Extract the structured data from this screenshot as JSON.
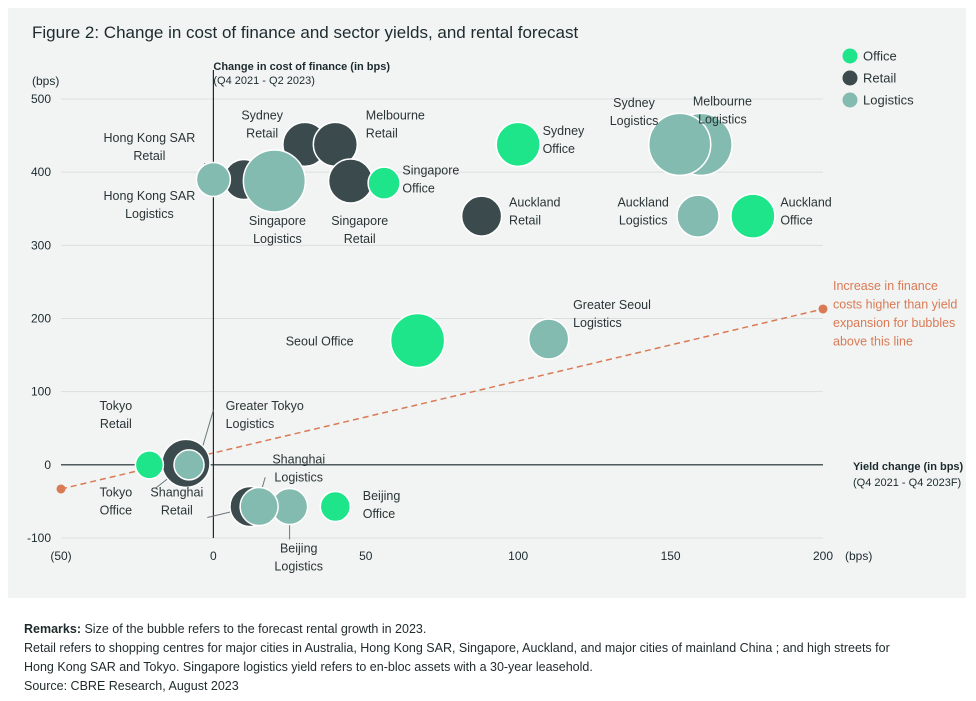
{
  "chart_data": {
    "type": "scatter",
    "title": "Figure 2: Change in cost of finance and sector yields, and rental forecast",
    "ylabel": "Change in cost of finance (in bps)",
    "ylabel_sub": "(Q4 2021 - Q2 2023)",
    "y_unit": "(bps)",
    "xlabel": "Yield change (in bps)",
    "xlabel_sub": "(Q4 2021 - Q4 2023F)",
    "x_unit": "(bps)",
    "xlim": [
      -50,
      200
    ],
    "ylim": [
      -100,
      500
    ],
    "x_ticks": [
      {
        "v": -50,
        "t": "(50)"
      },
      {
        "v": 0,
        "t": "0"
      },
      {
        "v": 50,
        "t": "50"
      },
      {
        "v": 100,
        "t": "100"
      },
      {
        "v": 150,
        "t": "150"
      },
      {
        "v": 200,
        "t": "200"
      }
    ],
    "y_ticks": [
      {
        "v": 500,
        "t": "500"
      },
      {
        "v": 400,
        "t": "400"
      },
      {
        "v": 300,
        "t": "300"
      },
      {
        "v": 200,
        "t": "200"
      },
      {
        "v": 100,
        "t": "100"
      },
      {
        "v": 0,
        "t": "0"
      },
      {
        "v": -100,
        "t": "-100"
      }
    ],
    "legend": [
      {
        "name": "Office",
        "color": "#1ee58a"
      },
      {
        "name": "Retail",
        "color": "#3b4a4c"
      },
      {
        "name": "Logistics",
        "color": "#84bbb0"
      }
    ],
    "series_colors": {
      "Office": "#1ee58a",
      "Retail": "#3b4a4c",
      "Logistics": "#84bbb0"
    },
    "points": [
      {
        "name": "Hong Kong SAR Retail",
        "sector": "Retail",
        "x": 10,
        "y": 390,
        "size": 20
      },
      {
        "name": "Sydney Retail",
        "sector": "Retail",
        "x": 30,
        "y": 438,
        "size": 22
      },
      {
        "name": "Melbourne Retail",
        "sector": "Retail",
        "x": 40,
        "y": 438,
        "size": 22
      },
      {
        "name": "Singapore Retail",
        "sector": "Retail",
        "x": 45,
        "y": 388,
        "size": 22
      },
      {
        "name": "Auckland Retail",
        "sector": "Retail",
        "x": 88,
        "y": 340,
        "size": 20
      },
      {
        "name": "Tokyo Retail",
        "sector": "Retail",
        "x": -9,
        "y": 2,
        "size": 24
      },
      {
        "name": "Shanghai Retail",
        "sector": "Retail",
        "x": 12,
        "y": -57,
        "size": 20
      },
      {
        "name": "Hong Kong SAR Logistics",
        "sector": "Logistics",
        "x": 0,
        "y": 390,
        "size": 17
      },
      {
        "name": "Singapore Logistics",
        "sector": "Logistics",
        "x": 20,
        "y": 388,
        "size": 31
      },
      {
        "name": "Melbourne Logistics",
        "sector": "Logistics",
        "x": 160,
        "y": 438,
        "size": 31
      },
      {
        "name": "Sydney Logistics",
        "sector": "Logistics",
        "x": 153,
        "y": 438,
        "size": 31
      },
      {
        "name": "Auckland Logistics",
        "sector": "Logistics",
        "x": 159,
        "y": 340,
        "size": 21
      },
      {
        "name": "Greater Seoul Logistics",
        "sector": "Logistics",
        "x": 110,
        "y": 172,
        "size": 20
      },
      {
        "name": "Greater Tokyo Logistics",
        "sector": "Logistics",
        "x": -8,
        "y": 0,
        "size": 15
      },
      {
        "name": "Beijing Logistics",
        "sector": "Logistics",
        "x": 25,
        "y": -57,
        "size": 18
      },
      {
        "name": "Shanghai Logistics",
        "sector": "Logistics",
        "x": 15,
        "y": -57,
        "size": 19
      },
      {
        "name": "Sydney Office",
        "sector": "Office",
        "x": 100,
        "y": 438,
        "size": 22
      },
      {
        "name": "Singapore Office",
        "sector": "Office",
        "x": 56,
        "y": 385,
        "size": 16
      },
      {
        "name": "Auckland Office",
        "sector": "Office",
        "x": 177,
        "y": 340,
        "size": 22
      },
      {
        "name": "Seoul Office",
        "sector": "Office",
        "x": 67,
        "y": 170,
        "size": 27
      },
      {
        "name": "Tokyo Office",
        "sector": "Office",
        "x": -21,
        "y": 0,
        "size": 14
      },
      {
        "name": "Beijing Office",
        "sector": "Office",
        "x": 40,
        "y": -57,
        "size": 15
      }
    ],
    "labels": [
      {
        "lines": [
          "Hong Kong SAR",
          "Retail"
        ],
        "x": -21,
        "y": 441,
        "anchor": "middle"
      },
      {
        "lines": [
          "Sydney",
          "Retail"
        ],
        "x": 16,
        "y": 472,
        "anchor": "middle"
      },
      {
        "lines": [
          "Melbourne",
          "Retail"
        ],
        "x": 50,
        "y": 472,
        "anchor": "start"
      },
      {
        "lines": [
          "Singapore",
          "Office"
        ],
        "x": 62,
        "y": 397,
        "anchor": "start"
      },
      {
        "lines": [
          "Hong Kong SAR",
          "Logistics"
        ],
        "x": -21,
        "y": 362,
        "anchor": "middle"
      },
      {
        "lines": [
          "Singapore",
          "Logistics"
        ],
        "x": 21,
        "y": 328,
        "anchor": "middle"
      },
      {
        "lines": [
          "Singapore",
          "Retail"
        ],
        "x": 48,
        "y": 328,
        "anchor": "middle"
      },
      {
        "lines": [
          "Sydney",
          "Office"
        ],
        "x": 108,
        "y": 451,
        "anchor": "start"
      },
      {
        "lines": [
          "Sydney",
          "Logistics"
        ],
        "x": 138,
        "y": 489,
        "anchor": "middle"
      },
      {
        "lines": [
          "Melbourne",
          "Logistics"
        ],
        "x": 167,
        "y": 491,
        "anchor": "middle"
      },
      {
        "lines": [
          "Auckland",
          "Retail"
        ],
        "x": 97,
        "y": 353,
        "anchor": "start"
      },
      {
        "lines": [
          "Auckland",
          "Logistics"
        ],
        "x": 141,
        "y": 353,
        "anchor": "middle"
      },
      {
        "lines": [
          "Auckland",
          "Office"
        ],
        "x": 186,
        "y": 353,
        "anchor": "start"
      },
      {
        "lines": [
          "Greater Seoul",
          "Logistics"
        ],
        "x": 118,
        "y": 213,
        "anchor": "start"
      },
      {
        "lines": [
          "Seoul Office"
        ],
        "x": 46,
        "y": 163,
        "anchor": "end"
      },
      {
        "lines": [
          "Tokyo",
          "Retail"
        ],
        "x": -32,
        "y": 75,
        "anchor": "middle"
      },
      {
        "lines": [
          "Greater Tokyo",
          "Logistics"
        ],
        "x": 4,
        "y": 75,
        "anchor": "start"
      },
      {
        "lines": [
          "Tokyo",
          "Office"
        ],
        "x": -32,
        "y": -43,
        "anchor": "middle"
      },
      {
        "lines": [
          "Shanghai",
          "Retail"
        ],
        "x": -12,
        "y": -43,
        "anchor": "middle"
      },
      {
        "lines": [
          "Shanghai",
          "Logistics"
        ],
        "x": 28,
        "y": 2,
        "anchor": "middle"
      },
      {
        "lines": [
          "Beijing",
          "Office"
        ],
        "x": 49,
        "y": -48,
        "anchor": "start"
      },
      {
        "lines": [
          "Beijing",
          "Logistics"
        ],
        "x": 28,
        "y": -120,
        "anchor": "middle"
      }
    ],
    "leaders": [
      [
        -3,
        412,
        7,
        386
      ],
      [
        -13,
        16,
        -9,
        4
      ],
      [
        0,
        75,
        -5,
        4
      ],
      [
        -19,
        -32,
        -11,
        -6
      ],
      [
        -2,
        -72,
        10,
        -60
      ],
      [
        17,
        -17,
        15,
        -46
      ],
      [
        25,
        -102,
        25,
        -67
      ]
    ],
    "threshold_line": {
      "x1": -50,
      "y1": -33,
      "x2": 200,
      "y2": 213,
      "color": "#d97a55"
    },
    "annotation": [
      "Increase in finance",
      "costs higher than yield",
      "expansion for bubbles",
      "above this line"
    ]
  },
  "notes": {
    "remarks_label": "Remarks:",
    "remarks_text": " Size of the bubble refers to the forecast rental growth in 2023.",
    "line2": "Retail refers to shopping centres for major cities in Australia, Hong Kong SAR, Singapore, Auckland, and major cities of mainland China ; and high streets for",
    "line3": "Hong Kong SAR and Tokyo. Singapore logistics yield refers to en-bloc assets with a 30-year leasehold.",
    "source": "Source: CBRE Research, August 2023"
  }
}
